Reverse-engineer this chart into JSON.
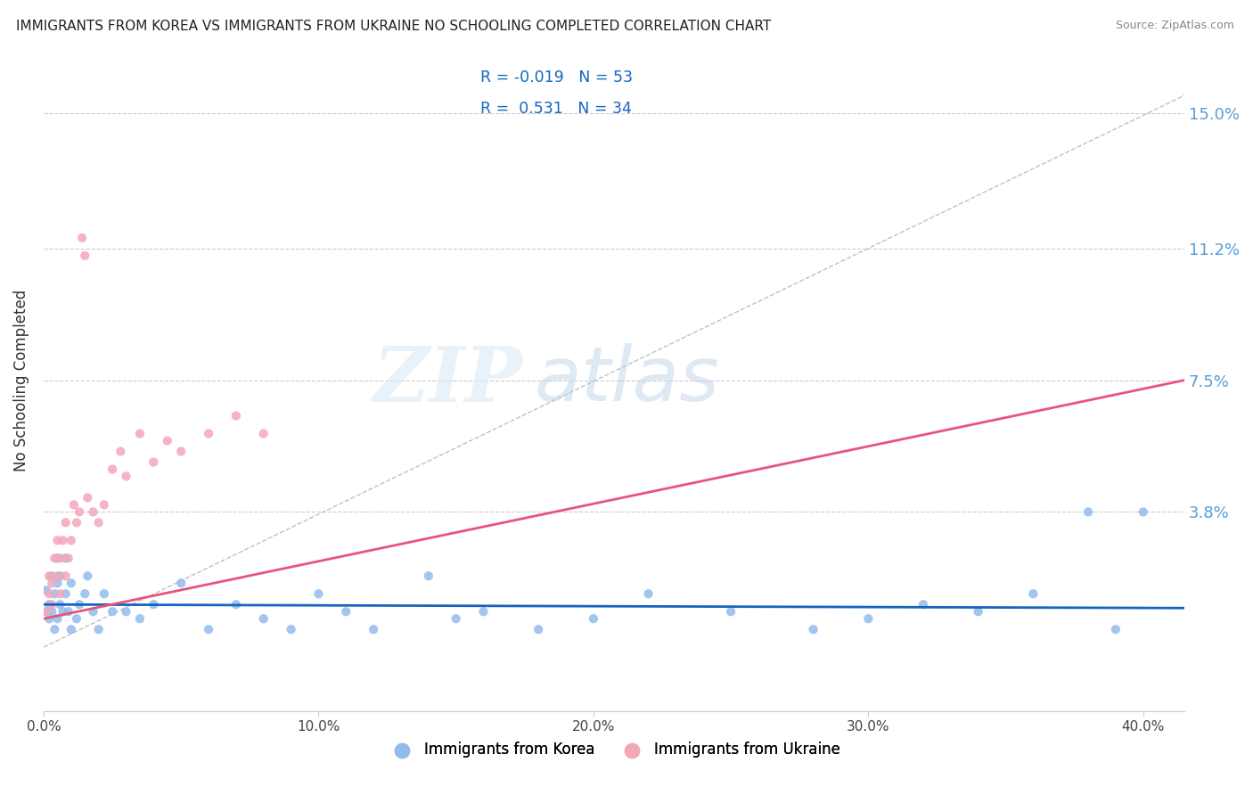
{
  "title": "IMMIGRANTS FROM KOREA VS IMMIGRANTS FROM UKRAINE NO SCHOOLING COMPLETED CORRELATION CHART",
  "source": "Source: ZipAtlas.com",
  "ylabel": "No Schooling Completed",
  "xlim": [
    0.0,
    0.415
  ],
  "ylim": [
    -0.018,
    0.168
  ],
  "xticks": [
    0.0,
    0.1,
    0.2,
    0.3,
    0.4
  ],
  "xtick_labels": [
    "0.0%",
    "10.0%",
    "20.0%",
    "30.0%",
    "40.0%"
  ],
  "ytick_positions": [
    0.038,
    0.075,
    0.112,
    0.15
  ],
  "ytick_labels": [
    "3.8%",
    "7.5%",
    "11.2%",
    "15.0%"
  ],
  "korea_color": "#92BCEC",
  "ukraine_color": "#F4A7B9",
  "trend_korea_color": "#1565C0",
  "trend_ukraine_color": "#E8547A",
  "ref_line_color": "#C0C0C0",
  "background_color": "#FFFFFF",
  "watermark_zip": "ZIP",
  "watermark_atlas": "atlas",
  "korea_R": "-0.019",
  "korea_N": "53",
  "ukraine_R": "0.531",
  "ukraine_N": "34",
  "korea_x": [
    0.001,
    0.001,
    0.002,
    0.002,
    0.003,
    0.003,
    0.004,
    0.004,
    0.005,
    0.005,
    0.005,
    0.006,
    0.006,
    0.007,
    0.008,
    0.008,
    0.009,
    0.01,
    0.01,
    0.012,
    0.013,
    0.015,
    0.016,
    0.018,
    0.02,
    0.022,
    0.025,
    0.03,
    0.035,
    0.04,
    0.05,
    0.06,
    0.07,
    0.08,
    0.09,
    0.1,
    0.11,
    0.12,
    0.14,
    0.15,
    0.16,
    0.18,
    0.2,
    0.22,
    0.25,
    0.28,
    0.3,
    0.32,
    0.34,
    0.36,
    0.38,
    0.39,
    0.4
  ],
  "korea_y": [
    0.01,
    0.016,
    0.008,
    0.012,
    0.01,
    0.02,
    0.005,
    0.015,
    0.008,
    0.018,
    0.025,
    0.012,
    0.02,
    0.01,
    0.015,
    0.025,
    0.01,
    0.005,
    0.018,
    0.008,
    0.012,
    0.015,
    0.02,
    0.01,
    0.005,
    0.015,
    0.01,
    0.01,
    0.008,
    0.012,
    0.018,
    0.005,
    0.012,
    0.008,
    0.005,
    0.015,
    0.01,
    0.005,
    0.02,
    0.008,
    0.01,
    0.005,
    0.008,
    0.015,
    0.01,
    0.005,
    0.008,
    0.012,
    0.01,
    0.015,
    0.038,
    0.005,
    0.038
  ],
  "ukraine_x": [
    0.001,
    0.002,
    0.002,
    0.003,
    0.003,
    0.004,
    0.005,
    0.005,
    0.006,
    0.006,
    0.007,
    0.008,
    0.008,
    0.009,
    0.01,
    0.011,
    0.012,
    0.013,
    0.014,
    0.015,
    0.016,
    0.018,
    0.02,
    0.022,
    0.025,
    0.028,
    0.03,
    0.035,
    0.04,
    0.045,
    0.05,
    0.06,
    0.07,
    0.08
  ],
  "ukraine_y": [
    0.01,
    0.015,
    0.02,
    0.012,
    0.018,
    0.025,
    0.02,
    0.03,
    0.015,
    0.025,
    0.03,
    0.02,
    0.035,
    0.025,
    0.03,
    0.04,
    0.035,
    0.038,
    0.115,
    0.11,
    0.042,
    0.038,
    0.035,
    0.04,
    0.05,
    0.055,
    0.048,
    0.06,
    0.052,
    0.058,
    0.055,
    0.06,
    0.065,
    0.06
  ]
}
